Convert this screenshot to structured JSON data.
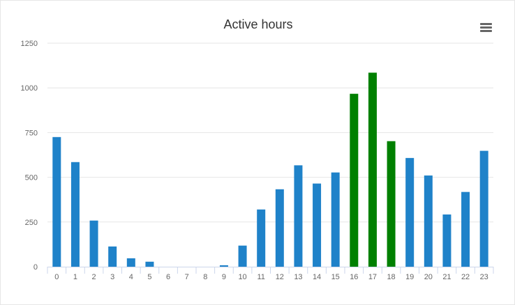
{
  "chart_data": {
    "type": "bar",
    "title": "Active hours",
    "xlabel": "",
    "ylabel": "",
    "categories": [
      "0",
      "1",
      "2",
      "3",
      "4",
      "5",
      "6",
      "7",
      "8",
      "9",
      "10",
      "11",
      "12",
      "13",
      "14",
      "15",
      "16",
      "17",
      "18",
      "19",
      "20",
      "21",
      "22",
      "23"
    ],
    "values": [
      725,
      585,
      258,
      113,
      47,
      28,
      0,
      0,
      0,
      8,
      118,
      320,
      433,
      567,
      465,
      527,
      967,
      1085,
      702,
      608,
      510,
      292,
      418,
      648
    ],
    "highlighted_categories": [
      "16",
      "17",
      "18"
    ],
    "ylim": [
      0,
      1250
    ],
    "yticks": [
      0,
      250,
      500,
      750,
      1000,
      1250
    ],
    "grid": true,
    "legend": "none",
    "colors": {
      "bar": "#1f82c9",
      "highlight": "#008000",
      "grid": "#e6e6e6",
      "axis": "#ccd6eb"
    }
  },
  "toolbar": {
    "menu_icon": "hamburger-menu-icon"
  }
}
